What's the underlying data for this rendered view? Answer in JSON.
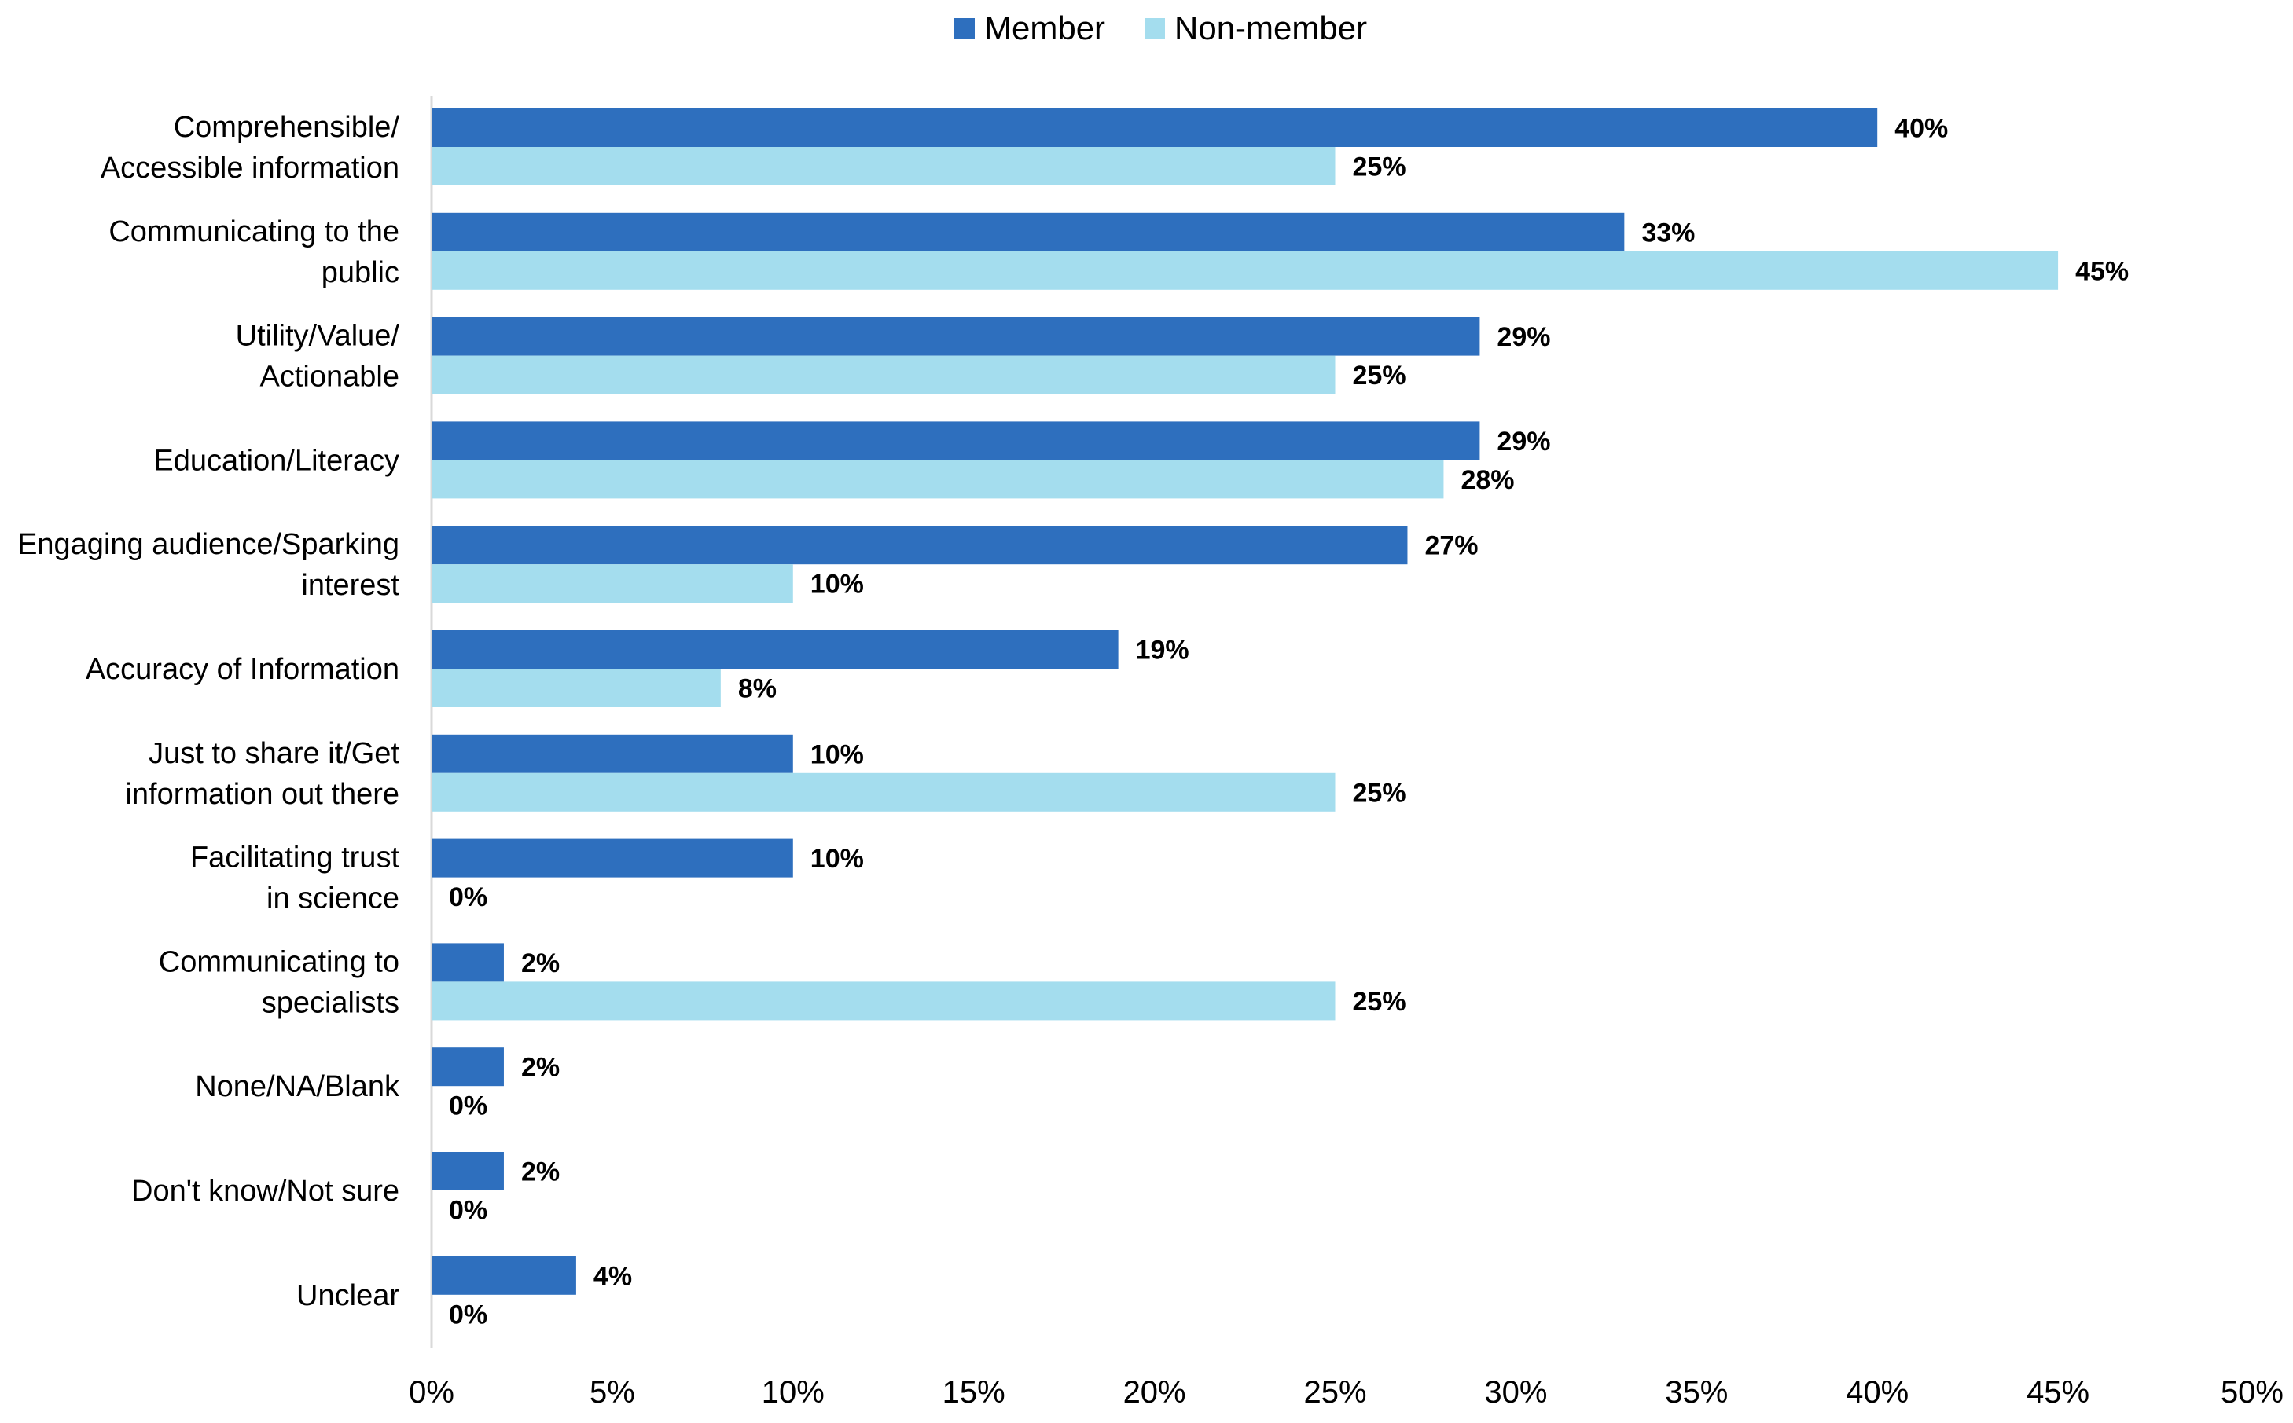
{
  "chart_data": {
    "type": "bar",
    "orientation": "horizontal",
    "title": "",
    "xlabel": "",
    "ylabel": "",
    "xlim": [
      0,
      50
    ],
    "x_ticks": [
      "0%",
      "5%",
      "10%",
      "15%",
      "20%",
      "25%",
      "30%",
      "35%",
      "40%",
      "45%",
      "50%"
    ],
    "grid": false,
    "legend_position": "top-center",
    "categories": [
      [
        "Comprehensible/",
        "Accessible information"
      ],
      [
        "Communicating to the",
        "public"
      ],
      [
        "Utility/Value/",
        "Actionable"
      ],
      [
        "Education/Literacy"
      ],
      [
        "Engaging audience/Sparking",
        "interest"
      ],
      [
        "Accuracy of Information"
      ],
      [
        "Just to share it/Get",
        "information out there"
      ],
      [
        "Facilitating trust",
        "in science"
      ],
      [
        "Communicating to",
        "specialists"
      ],
      [
        "None/NA/Blank"
      ],
      [
        "Don't know/Not sure"
      ],
      [
        "Unclear"
      ]
    ],
    "series": [
      {
        "name": "Member",
        "color": "#2E6FBE",
        "values": [
          40,
          33,
          29,
          29,
          27,
          19,
          10,
          10,
          2,
          2,
          2,
          4
        ],
        "labels": [
          "40%",
          "33%",
          "29%",
          "29%",
          "27%",
          "19%",
          "10%",
          "10%",
          "2%",
          "2%",
          "2%",
          "4%"
        ]
      },
      {
        "name": "Non-member",
        "color": "#A4DDEE",
        "values": [
          25,
          45,
          25,
          28,
          10,
          8,
          25,
          0,
          25,
          0,
          0,
          0
        ],
        "labels": [
          "25%",
          "45%",
          "25%",
          "28%",
          "10%",
          "8%",
          "25%",
          "0%",
          "25%",
          "0%",
          "0%",
          "0%"
        ]
      }
    ]
  },
  "colors": {
    "axis": "#D9D9D9",
    "text": "#000000"
  }
}
